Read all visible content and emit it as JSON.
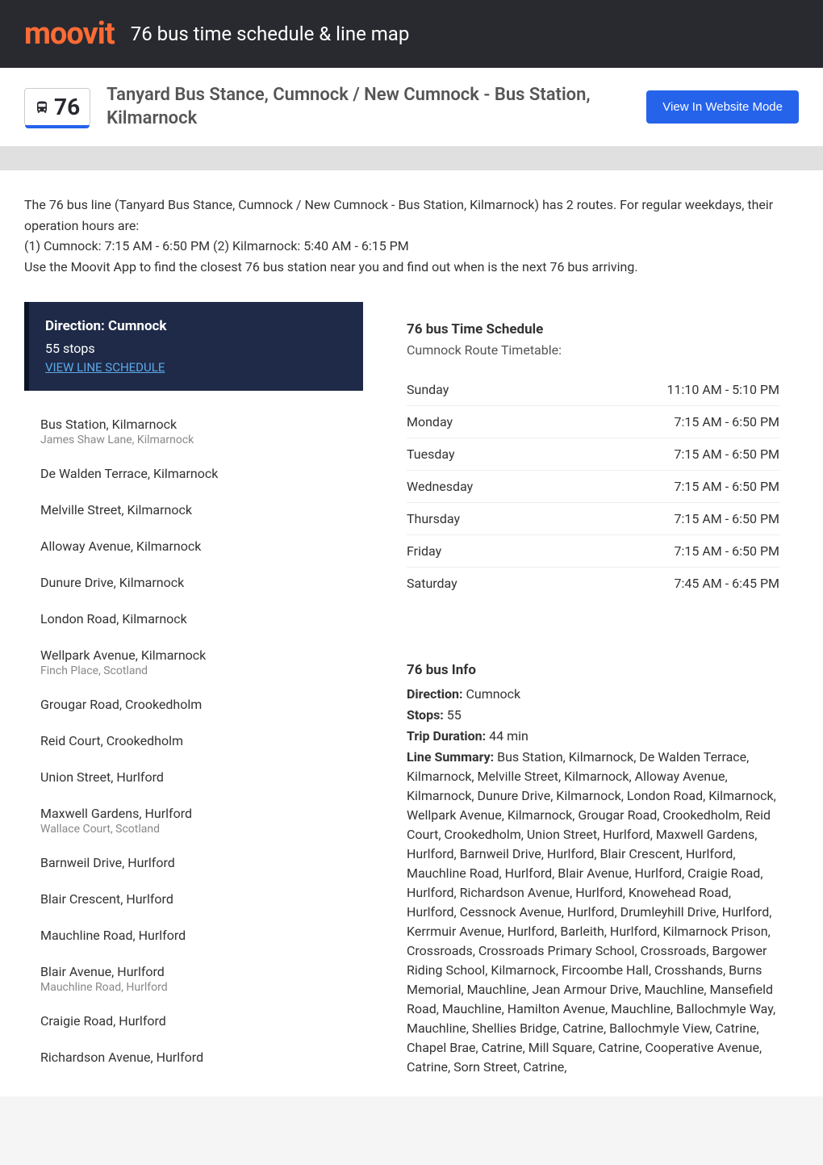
{
  "header": {
    "logo": "moovit",
    "title": "76 bus time schedule & line map"
  },
  "route": {
    "number": "76",
    "title": "Tanyard Bus Stance, Cumnock / New Cumnock - Bus Station, Kilmarnock",
    "website_btn": "View In Website Mode"
  },
  "description": {
    "line1": "The 76 bus line (Tanyard Bus Stance, Cumnock / New Cumnock - Bus Station, Kilmarnock) has 2 routes. For regular weekdays, their operation hours are:",
    "line2": "(1) Cumnock: 7:15 AM - 6:50 PM (2) Kilmarnock: 5:40 AM - 6:15 PM",
    "line3": "Use the Moovit App to find the closest 76 bus station near you and find out when is the next 76 bus arriving."
  },
  "direction": {
    "title": "Direction: Cumnock",
    "stops_count": "55 stops",
    "link": "VIEW LINE SCHEDULE"
  },
  "stops": [
    {
      "name": "Bus Station, Kilmarnock",
      "sub": "James Shaw Lane, Kilmarnock"
    },
    {
      "name": "De Walden Terrace, Kilmarnock",
      "sub": ""
    },
    {
      "name": "Melville Street, Kilmarnock",
      "sub": ""
    },
    {
      "name": "Alloway Avenue, Kilmarnock",
      "sub": ""
    },
    {
      "name": "Dunure Drive, Kilmarnock",
      "sub": ""
    },
    {
      "name": "London Road, Kilmarnock",
      "sub": ""
    },
    {
      "name": "Wellpark Avenue, Kilmarnock",
      "sub": "Finch Place, Scotland"
    },
    {
      "name": "Grougar Road, Crookedholm",
      "sub": ""
    },
    {
      "name": "Reid Court, Crookedholm",
      "sub": ""
    },
    {
      "name": "Union Street, Hurlford",
      "sub": ""
    },
    {
      "name": "Maxwell Gardens, Hurlford",
      "sub": "Wallace Court, Scotland"
    },
    {
      "name": "Barnweil Drive, Hurlford",
      "sub": ""
    },
    {
      "name": "Blair Crescent, Hurlford",
      "sub": ""
    },
    {
      "name": "Mauchline Road, Hurlford",
      "sub": ""
    },
    {
      "name": "Blair Avenue, Hurlford",
      "sub": "Mauchline Road, Hurlford"
    },
    {
      "name": "Craigie Road, Hurlford",
      "sub": ""
    },
    {
      "name": "Richardson Avenue, Hurlford",
      "sub": ""
    }
  ],
  "schedule": {
    "title": "76 bus Time Schedule",
    "subtitle": "Cumnock Route Timetable:",
    "rows": [
      {
        "day": "Sunday",
        "time": "11:10 AM - 5:10 PM"
      },
      {
        "day": "Monday",
        "time": "7:15 AM - 6:50 PM"
      },
      {
        "day": "Tuesday",
        "time": "7:15 AM - 6:50 PM"
      },
      {
        "day": "Wednesday",
        "time": "7:15 AM - 6:50 PM"
      },
      {
        "day": "Thursday",
        "time": "7:15 AM - 6:50 PM"
      },
      {
        "day": "Friday",
        "time": "7:15 AM - 6:50 PM"
      },
      {
        "day": "Saturday",
        "time": "7:45 AM - 6:45 PM"
      }
    ]
  },
  "info": {
    "title": "76 bus Info",
    "direction_label": "Direction:",
    "direction_value": " Cumnock",
    "stops_label": "Stops:",
    "stops_value": " 55",
    "duration_label": "Trip Duration:",
    "duration_value": " 44 min",
    "summary_label": "Line Summary:",
    "summary_value": " Bus Station, Kilmarnock, De Walden Terrace, Kilmarnock, Melville Street, Kilmarnock, Alloway Avenue, Kilmarnock, Dunure Drive, Kilmarnock, London Road, Kilmarnock, Wellpark Avenue, Kilmarnock, Grougar Road, Crookedholm, Reid Court, Crookedholm, Union Street, Hurlford, Maxwell Gardens, Hurlford, Barnweil Drive, Hurlford, Blair Crescent, Hurlford, Mauchline Road, Hurlford, Blair Avenue, Hurlford, Craigie Road, Hurlford, Richardson Avenue, Hurlford, Knowehead Road, Hurlford, Cessnock Avenue, Hurlford, Drumleyhill Drive, Hurlford, Kerrmuir Avenue, Hurlford, Barleith, Hurlford, Kilmarnock Prison, Crossroads, Crossroads Primary School, Crossroads, Bargower Riding School, Kilmarnock, Fircoombe Hall, Crosshands, Burns Memorial, Mauchline, Jean Armour Drive, Mauchline, Mansefield Road, Mauchline, Hamilton Avenue, Mauchline, Ballochmyle Way, Mauchline, Shellies Bridge, Catrine, Ballochmyle View, Catrine, Chapel Brae, Catrine, Mill Square, Catrine, Cooperative Avenue, Catrine, Sorn Street, Catrine,"
  },
  "colors": {
    "brand_orange": "#ff6b35",
    "dark_bg": "#292a30",
    "blue": "#2563eb",
    "dark_blue": "#1e2a47",
    "link_blue": "#5da9e9"
  }
}
